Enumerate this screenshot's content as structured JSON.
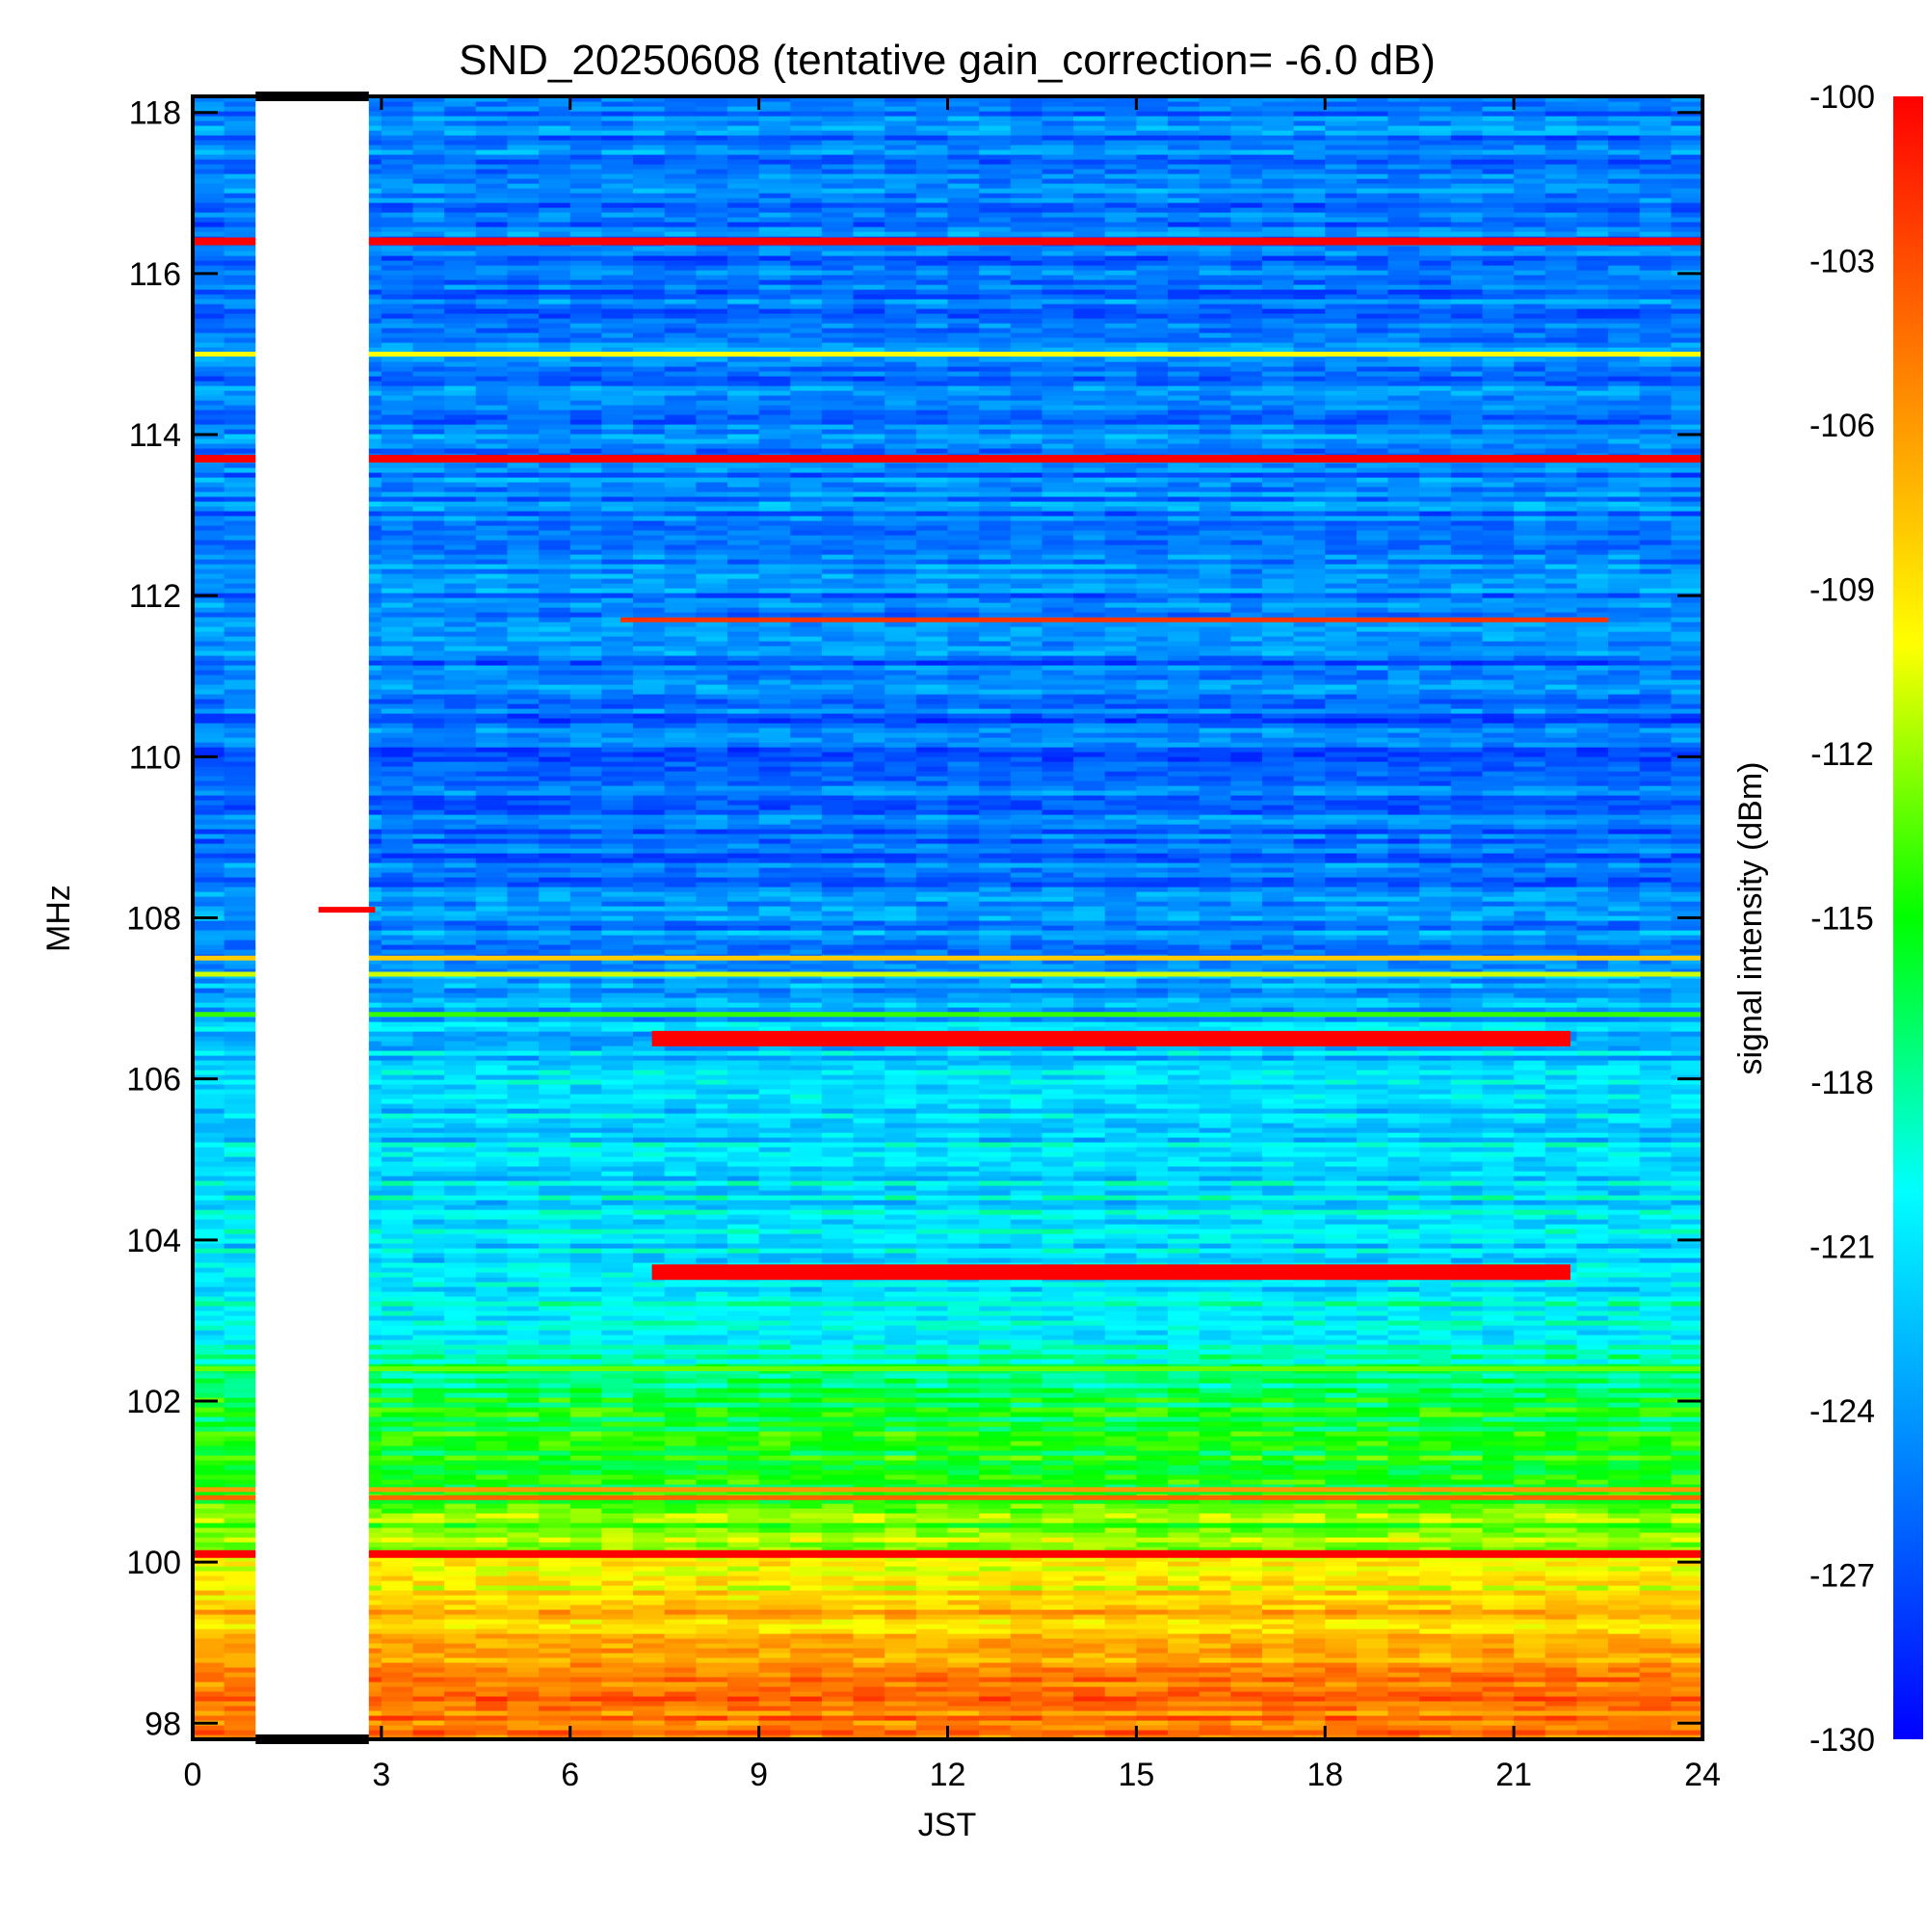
{
  "chart_data": {
    "type": "heatmap",
    "title": "SND_20250608 (tentative gain_correction= -6.0 dB)",
    "xlabel": "JST",
    "ylabel": "MHz",
    "colorbar_label": "signal intensity (dBm)",
    "xlim": [
      0,
      24
    ],
    "ylim": [
      97.8,
      118.2
    ],
    "x_ticks": [
      "0",
      "3",
      "6",
      "9",
      "12",
      "15",
      "18",
      "21",
      "24"
    ],
    "y_ticks": [
      "98",
      "100",
      "102",
      "104",
      "106",
      "108",
      "110",
      "112",
      "114",
      "116",
      "118"
    ],
    "color_range": [
      -130,
      -100
    ],
    "color_ticks": [
      "-100",
      "-103",
      "-106",
      "-109",
      "-112",
      "-115",
      "-118",
      "-121",
      "-124",
      "-127",
      "-130"
    ],
    "colormap": [
      "#0000ff",
      "#0080ff",
      "#00ffff",
      "#00ff00",
      "#ffff00",
      "#ff8000",
      "#ff0000"
    ],
    "missing_data_interval": [
      1.0,
      2.8
    ],
    "background_levels": [
      {
        "mhz": 98,
        "dbm": -104
      },
      {
        "mhz": 99,
        "dbm": -106
      },
      {
        "mhz": 100,
        "dbm": -111
      },
      {
        "mhz": 101,
        "dbm": -115
      },
      {
        "mhz": 102,
        "dbm": -116
      },
      {
        "mhz": 103,
        "dbm": -120
      },
      {
        "mhz": 104,
        "dbm": -121
      },
      {
        "mhz": 105,
        "dbm": -121
      },
      {
        "mhz": 106,
        "dbm": -122
      },
      {
        "mhz": 107,
        "dbm": -123
      },
      {
        "mhz": 108,
        "dbm": -125
      },
      {
        "mhz": 110,
        "dbm": -126
      },
      {
        "mhz": 112,
        "dbm": -125
      },
      {
        "mhz": 114,
        "dbm": -125
      },
      {
        "mhz": 116,
        "dbm": -125
      },
      {
        "mhz": 118,
        "dbm": -125
      }
    ],
    "strong_signals": [
      {
        "mhz": 116.4,
        "x": [
          0,
          24
        ],
        "dbm": -100
      },
      {
        "mhz": 115.0,
        "x": [
          0,
          24
        ],
        "dbm": -110
      },
      {
        "mhz": 113.7,
        "x": [
          0,
          24
        ],
        "dbm": -100
      },
      {
        "mhz": 111.7,
        "x": [
          6.8,
          22.5
        ],
        "dbm": -102
      },
      {
        "mhz": 108.1,
        "x": [
          2.0,
          2.9
        ],
        "dbm": -100
      },
      {
        "mhz": 107.5,
        "x": [
          0,
          24
        ],
        "dbm": -108
      },
      {
        "mhz": 107.3,
        "x": [
          0,
          24
        ],
        "dbm": -111
      },
      {
        "mhz": 106.8,
        "x": [
          0,
          24
        ],
        "dbm": -114
      },
      {
        "mhz": 106.5,
        "x": [
          7.3,
          21.9
        ],
        "dbm": -100
      },
      {
        "mhz": 103.6,
        "x": [
          7.3,
          21.9
        ],
        "dbm": -100
      },
      {
        "mhz": 102.4,
        "x": [
          0,
          24
        ],
        "dbm": -113
      },
      {
        "mhz": 100.9,
        "x": [
          0,
          24
        ],
        "dbm": -106
      },
      {
        "mhz": 100.8,
        "x": [
          0,
          24
        ],
        "dbm": -104
      },
      {
        "mhz": 100.1,
        "x": [
          0,
          24
        ],
        "dbm": -100
      }
    ]
  }
}
